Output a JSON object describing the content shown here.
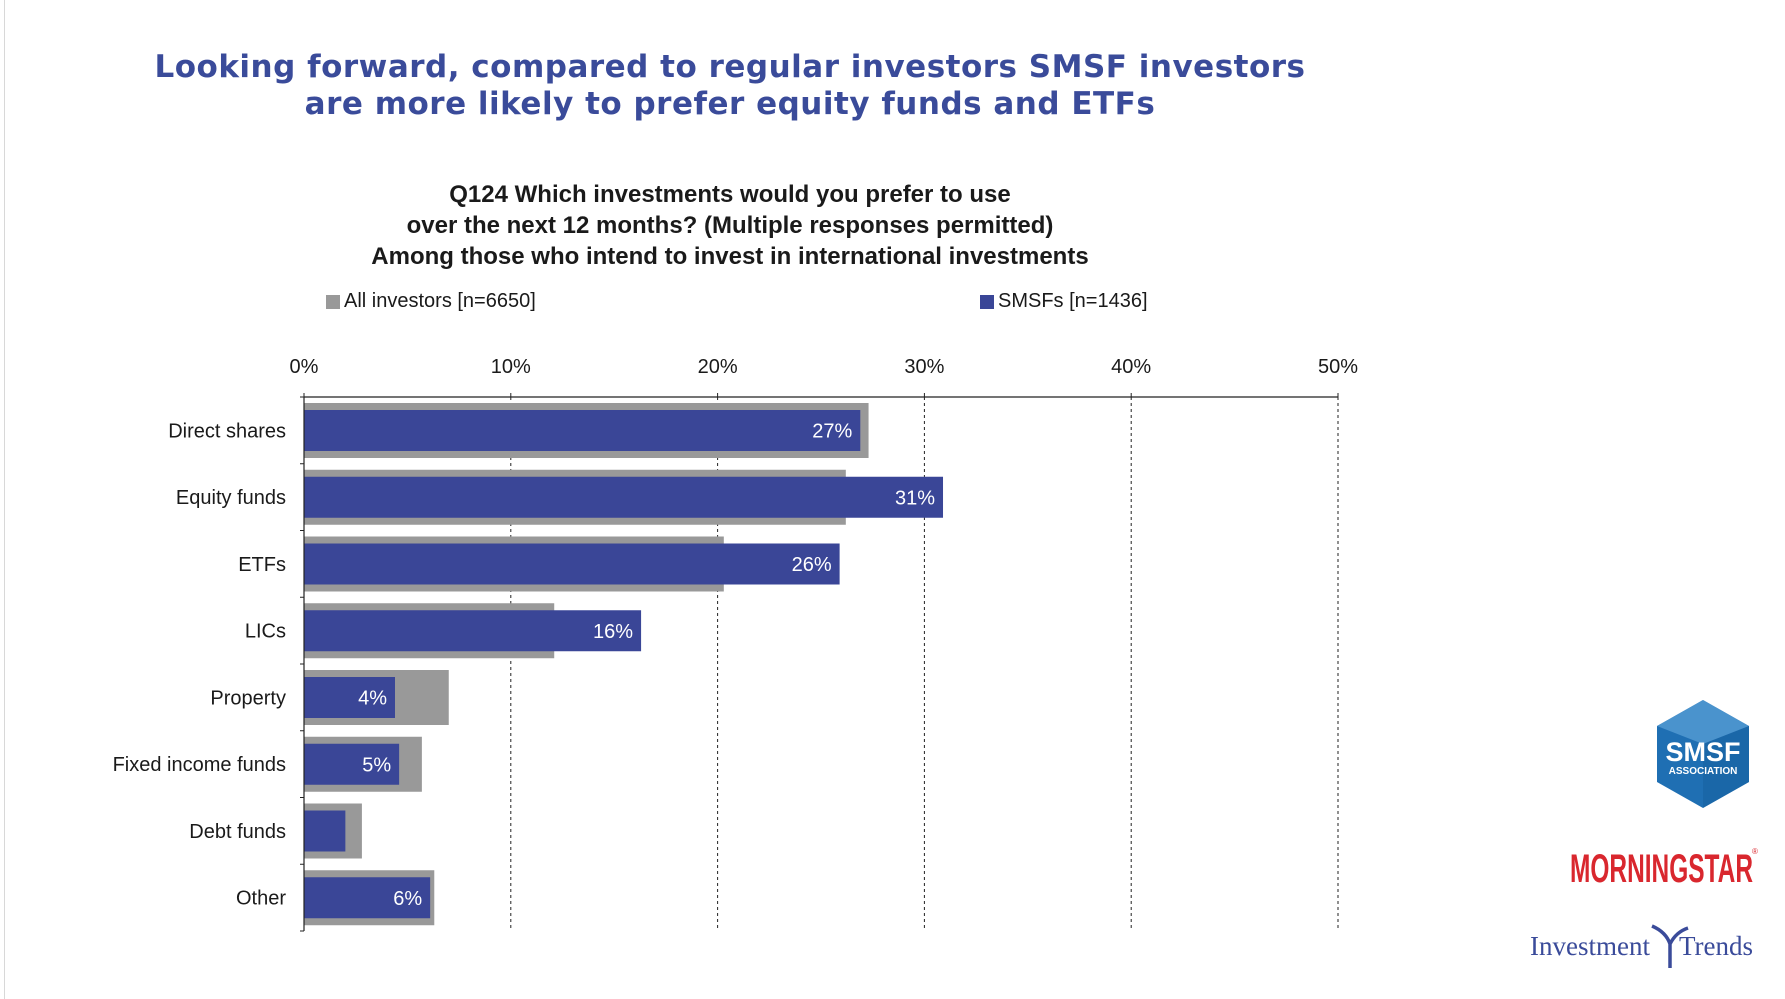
{
  "page": {
    "title_line1": "Looking forward, compared to regular investors SMSF investors",
    "title_line2": "are more likely to prefer equity funds and ETFs",
    "question_line1": "Q124 Which investments would you prefer to use",
    "question_line2": "over the next 12 months? (Multiple responses permitted)",
    "question_line3": "Among those who intend to invest in international investments"
  },
  "legend": {
    "all_investors": "All investors [n=6650]",
    "smsfs": "SMSFs [n=1436]"
  },
  "colors": {
    "title": "#3a4b9a",
    "smsf_bar": "#3a4697",
    "all_bar": "#999999",
    "grid": "#222222"
  },
  "chart_data": {
    "type": "bar",
    "orientation": "horizontal",
    "categories": [
      "Direct shares",
      "Equity funds",
      "ETFs",
      "LICs",
      "Property",
      "Fixed income funds",
      "Debt funds",
      "Other"
    ],
    "series": [
      {
        "name": "All investors [n=6650]",
        "values": [
          27.3,
          26.2,
          20.3,
          12.1,
          7.0,
          5.7,
          2.8,
          6.3
        ]
      },
      {
        "name": "SMSFs [n=1436]",
        "values": [
          26.9,
          30.9,
          25.9,
          16.3,
          4.4,
          4.6,
          2.0,
          6.1
        ],
        "data_labels": [
          "27%",
          "31%",
          "26%",
          "16%",
          "4%",
          "5%",
          "",
          "6%"
        ]
      }
    ],
    "x_ticks": [
      "0%",
      "10%",
      "20%",
      "30%",
      "40%",
      "50%"
    ],
    "xlim": [
      0,
      50
    ],
    "grid": "vertical dashed",
    "legend_position": "top"
  },
  "logos": {
    "smsf_text": "SMSF",
    "smsf_sub": "ASSOCIATION",
    "morningstar_text": "MORNINGSTAR",
    "investment_trends_left": "Investment",
    "investment_trends_right": "Trends"
  }
}
